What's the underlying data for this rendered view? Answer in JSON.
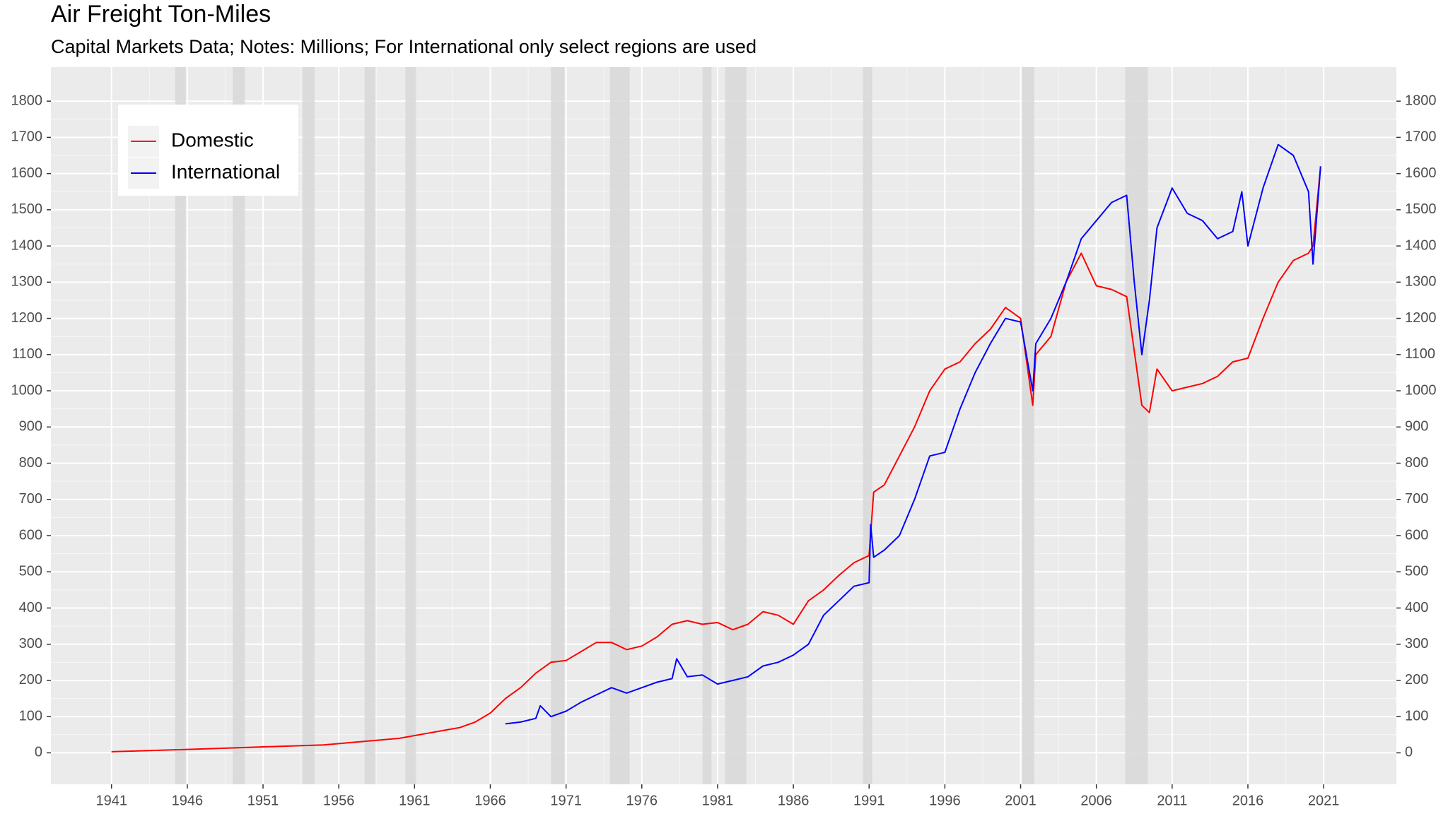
{
  "chart_data": {
    "type": "line",
    "title": "Air Freight Ton-Miles",
    "subtitle": "Capital Markets Data; Notes: Millions; For International only select regions are used",
    "xlim": [
      1937,
      2025.8
    ],
    "xticks": [
      1941,
      1946,
      1951,
      1956,
      1961,
      1966,
      1971,
      1976,
      1981,
      1986,
      1991,
      1996,
      2001,
      2006,
      2011,
      2016,
      2021
    ],
    "ylim": [
      -87,
      1894
    ],
    "yticks": [
      0,
      100,
      200,
      300,
      400,
      500,
      600,
      700,
      800,
      900,
      1000,
      1100,
      1200,
      1300,
      1400,
      1500,
      1600,
      1700,
      1800
    ],
    "grid": true,
    "shaded_periods": [
      [
        1945.2,
        1945.9
      ],
      [
        1949.0,
        1949.8
      ],
      [
        1953.6,
        1954.4
      ],
      [
        1957.7,
        1958.4
      ],
      [
        1960.4,
        1961.1
      ],
      [
        1970.0,
        1970.9
      ],
      [
        1973.9,
        1975.2
      ],
      [
        1980.0,
        1980.6
      ],
      [
        1981.5,
        1982.9
      ],
      [
        1990.6,
        1991.2
      ],
      [
        2001.1,
        2001.9
      ],
      [
        2007.9,
        2009.4
      ]
    ],
    "shade_color": "#d9d9d9",
    "legend_position": "top-left",
    "series": [
      {
        "name": "Domestic",
        "color": "#ff0000",
        "x": [
          1941,
          1945,
          1950,
          1955,
          1960,
          1962,
          1964,
          1965,
          1966,
          1967,
          1968,
          1969,
          1970,
          1971,
          1972,
          1973,
          1974,
          1975,
          1976,
          1977,
          1978,
          1979,
          1980,
          1981,
          1982,
          1983,
          1984,
          1985,
          1986,
          1987,
          1988,
          1989,
          1990,
          1991,
          1991.3,
          1992,
          1993,
          1994,
          1995,
          1996,
          1997,
          1998,
          1999,
          2000,
          2001,
          2001.8,
          2002,
          2003,
          2004,
          2005,
          2006,
          2007,
          2008,
          2009,
          2009.5,
          2010,
          2011,
          2012,
          2013,
          2014,
          2015,
          2016,
          2017,
          2018,
          2019,
          2020,
          2020.3,
          2020.8
        ],
        "values": [
          3,
          8,
          15,
          22,
          40,
          55,
          70,
          85,
          110,
          150,
          180,
          220,
          250,
          255,
          280,
          305,
          305,
          285,
          295,
          320,
          355,
          365,
          355,
          360,
          340,
          355,
          390,
          380,
          355,
          420,
          450,
          490,
          525,
          545,
          720,
          740,
          820,
          900,
          1000,
          1060,
          1080,
          1130,
          1170,
          1230,
          1200,
          960,
          1100,
          1150,
          1300,
          1380,
          1290,
          1280,
          1260,
          960,
          940,
          1060,
          1000,
          1010,
          1020,
          1040,
          1080,
          1090,
          1200,
          1300,
          1360,
          1380,
          1400,
          1620
        ]
      },
      {
        "name": "International",
        "color": "#0000ff",
        "x": [
          1967,
          1968,
          1969,
          1969.3,
          1970,
          1971,
          1972,
          1973,
          1974,
          1975,
          1976,
          1977,
          1978,
          1978.3,
          1979,
          1980,
          1981,
          1982,
          1983,
          1984,
          1985,
          1986,
          1987,
          1988,
          1989,
          1990,
          1991,
          1991.1,
          1991.3,
          1992,
          1993,
          1994,
          1995,
          1996,
          1997,
          1998,
          1999,
          2000,
          2001,
          2001.8,
          2002,
          2003,
          2004,
          2005,
          2006,
          2007,
          2008,
          2008.5,
          2009,
          2009.5,
          2010,
          2011,
          2012,
          2013,
          2014,
          2015,
          2015.6,
          2016,
          2017,
          2018,
          2019,
          2020,
          2020.3,
          2020.8
        ],
        "values": [
          80,
          85,
          95,
          130,
          100,
          115,
          140,
          160,
          180,
          165,
          180,
          195,
          205,
          260,
          210,
          215,
          190,
          200,
          210,
          240,
          250,
          270,
          300,
          380,
          420,
          460,
          470,
          630,
          540,
          560,
          600,
          700,
          820,
          830,
          950,
          1050,
          1130,
          1200,
          1190,
          1000,
          1130,
          1200,
          1300,
          1420,
          1470,
          1520,
          1540,
          1300,
          1100,
          1250,
          1450,
          1560,
          1490,
          1470,
          1420,
          1440,
          1550,
          1400,
          1560,
          1680,
          1650,
          1550,
          1350,
          1620
        ]
      }
    ]
  }
}
